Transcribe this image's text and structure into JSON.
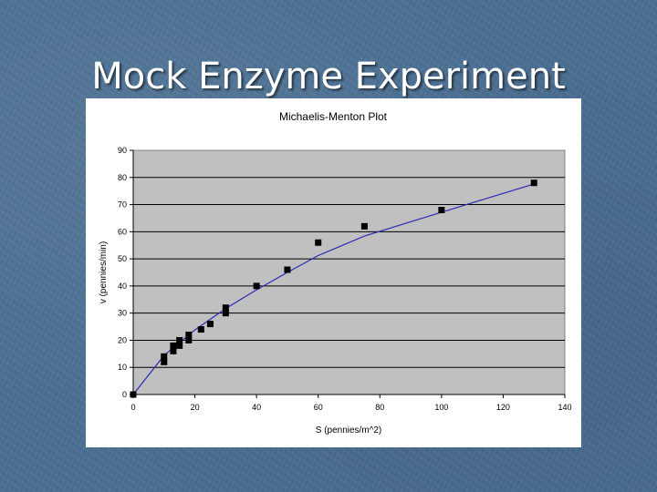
{
  "slide": {
    "title": "Mock Enzyme Experiment"
  },
  "colors": {
    "background": "#4a6f93",
    "plot_area": "#c0c0c0",
    "fit_line": "#2b2bb5",
    "points": "#000000"
  },
  "chart_data": {
    "type": "scatter",
    "title": "Michaelis-Menton Plot",
    "xlabel": "S (pennies/m^2)",
    "ylabel": "v (pennies/min)",
    "xlim": [
      0,
      140
    ],
    "ylim": [
      0,
      90
    ],
    "x_ticks": [
      0,
      20,
      40,
      60,
      80,
      100,
      120,
      140
    ],
    "y_ticks": [
      0,
      10,
      20,
      30,
      40,
      50,
      60,
      70,
      80,
      90
    ],
    "grid": "horizontal major gridlines",
    "legend": "none",
    "series": [
      {
        "type": "scatter",
        "marker": "square",
        "points": [
          [
            0,
            0
          ],
          [
            10,
            12
          ],
          [
            10,
            14
          ],
          [
            13,
            16
          ],
          [
            13,
            18
          ],
          [
            15,
            18
          ],
          [
            15,
            20
          ],
          [
            18,
            20
          ],
          [
            18,
            22
          ],
          [
            22,
            24
          ],
          [
            25,
            26
          ],
          [
            30,
            30
          ],
          [
            30,
            32
          ],
          [
            40,
            40
          ],
          [
            50,
            46
          ],
          [
            60,
            56
          ],
          [
            75,
            62
          ],
          [
            100,
            68
          ],
          [
            130,
            78
          ]
        ]
      },
      {
        "type": "line",
        "description": "fitted curve",
        "points": [
          [
            0,
            0
          ],
          [
            10,
            14.4
          ],
          [
            20,
            23.8
          ],
          [
            30,
            31.7
          ],
          [
            40,
            38.6
          ],
          [
            50,
            45
          ],
          [
            60,
            51.2
          ],
          [
            75,
            58.4
          ],
          [
            100,
            67.2
          ],
          [
            130,
            77.6
          ]
        ]
      }
    ]
  }
}
